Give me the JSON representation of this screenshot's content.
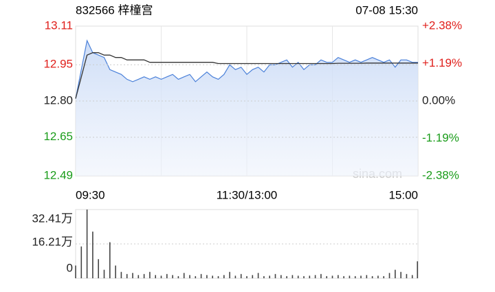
{
  "chart_data": [
    {
      "type": "line",
      "title": "832566 梓橦宫",
      "subtitle": "07-08 15:30",
      "watermark": "sina.com",
      "x": [
        0,
        4,
        8,
        12,
        16,
        20,
        24,
        28,
        32,
        36,
        40,
        44,
        48,
        52,
        56,
        60,
        64,
        68,
        72,
        76,
        80,
        84,
        88,
        92,
        96,
        100,
        104,
        108,
        112,
        116,
        120,
        124,
        128,
        132,
        136,
        140,
        144,
        148,
        152,
        156,
        160,
        164,
        168,
        172,
        176,
        180,
        184,
        188,
        192,
        196,
        200,
        204,
        208,
        212,
        216,
        220,
        224,
        228,
        232,
        236,
        240
      ],
      "series": [
        {
          "name": "price",
          "color": "#4a80d9",
          "values": [
            12.81,
            12.93,
            13.05,
            13.0,
            12.99,
            12.98,
            12.93,
            12.92,
            12.91,
            12.89,
            12.88,
            12.89,
            12.9,
            12.89,
            12.9,
            12.89,
            12.9,
            12.91,
            12.89,
            12.9,
            12.91,
            12.88,
            12.9,
            12.92,
            12.9,
            12.89,
            12.91,
            12.95,
            12.93,
            12.94,
            12.91,
            12.93,
            12.94,
            12.92,
            12.95,
            12.95,
            12.96,
            12.97,
            12.94,
            12.96,
            12.93,
            12.95,
            12.95,
            12.97,
            12.96,
            12.96,
            12.98,
            12.97,
            12.96,
            12.97,
            12.96,
            12.97,
            12.98,
            12.97,
            12.96,
            12.97,
            12.94,
            12.97,
            12.97,
            12.96,
            12.96
          ]
        },
        {
          "name": "average",
          "color": "#333333",
          "values": [
            12.81,
            12.9,
            12.99,
            13.0,
            13.0,
            12.99,
            12.99,
            12.98,
            12.98,
            12.97,
            12.97,
            12.97,
            12.97,
            12.96,
            12.96,
            12.96,
            12.96,
            12.96,
            12.96,
            12.96,
            12.96,
            12.96,
            12.96,
            12.96,
            12.96,
            12.955,
            12.955,
            12.955,
            12.955,
            12.955,
            12.955,
            12.955,
            12.955,
            12.955,
            12.955,
            12.955,
            12.955,
            12.955,
            12.955,
            12.955,
            12.955,
            12.955,
            12.955,
            12.955,
            12.955,
            12.955,
            12.956,
            12.956,
            12.956,
            12.956,
            12.956,
            12.957,
            12.957,
            12.957,
            12.957,
            12.957,
            12.957,
            12.957,
            12.957,
            12.957,
            12.957
          ]
        }
      ],
      "xlim": [
        0,
        240
      ],
      "xticks": [
        {
          "value": 0,
          "label": "09:30"
        },
        {
          "value": 120,
          "label": "11:30/13:00"
        },
        {
          "value": 240,
          "label": "15:00"
        }
      ],
      "xgrid": [
        60,
        120,
        180
      ],
      "ylim": [
        12.49,
        13.11
      ],
      "yticks": [
        13.11,
        12.95,
        {
          "value": 12.8,
          "label": "12.80"
        },
        12.65,
        12.49
      ],
      "y2lim": [
        -2.38,
        2.38
      ],
      "y2ticks": [
        {
          "value": 2.38,
          "label": "+2.38%"
        },
        {
          "value": 1.19,
          "label": "+1.19%"
        },
        {
          "value": 0,
          "label": "0.00%"
        },
        {
          "value": -1.19,
          "label": "-1.19%"
        },
        {
          "value": -2.38,
          "label": "-2.38%"
        }
      ],
      "up_color": "#e0201c",
      "down_color": "#1a9c1a"
    },
    {
      "type": "bar",
      "color": "#444444",
      "x": [
        0,
        4,
        8,
        12,
        16,
        20,
        24,
        28,
        32,
        36,
        40,
        44,
        48,
        52,
        56,
        60,
        64,
        68,
        72,
        76,
        80,
        84,
        88,
        92,
        96,
        100,
        104,
        108,
        112,
        116,
        120,
        124,
        128,
        132,
        136,
        140,
        144,
        148,
        152,
        156,
        160,
        164,
        168,
        172,
        176,
        180,
        184,
        188,
        192,
        196,
        200,
        204,
        208,
        212,
        216,
        220,
        224,
        228,
        232,
        236,
        240
      ],
      "values": [
        60000,
        150000,
        324100,
        220000,
        90000,
        40000,
        170000,
        60000,
        30000,
        20000,
        25000,
        15000,
        20000,
        30000,
        15000,
        12000,
        20000,
        15000,
        10000,
        25000,
        15000,
        10000,
        20000,
        15000,
        12000,
        10000,
        15000,
        30000,
        12000,
        20000,
        10000,
        15000,
        25000,
        10000,
        12000,
        20000,
        15000,
        10000,
        15000,
        12000,
        10000,
        12000,
        15000,
        20000,
        10000,
        12000,
        15000,
        10000,
        12000,
        10000,
        12000,
        15000,
        10000,
        12000,
        10000,
        25000,
        40000,
        30000,
        20000,
        15000,
        80000
      ],
      "xlim": [
        0,
        240
      ],
      "ylim": [
        0,
        324100
      ],
      "yticks": [
        {
          "value": 324100,
          "label": "32.41万"
        },
        {
          "value": 162100,
          "label": "16.21万"
        },
        0
      ]
    }
  ]
}
